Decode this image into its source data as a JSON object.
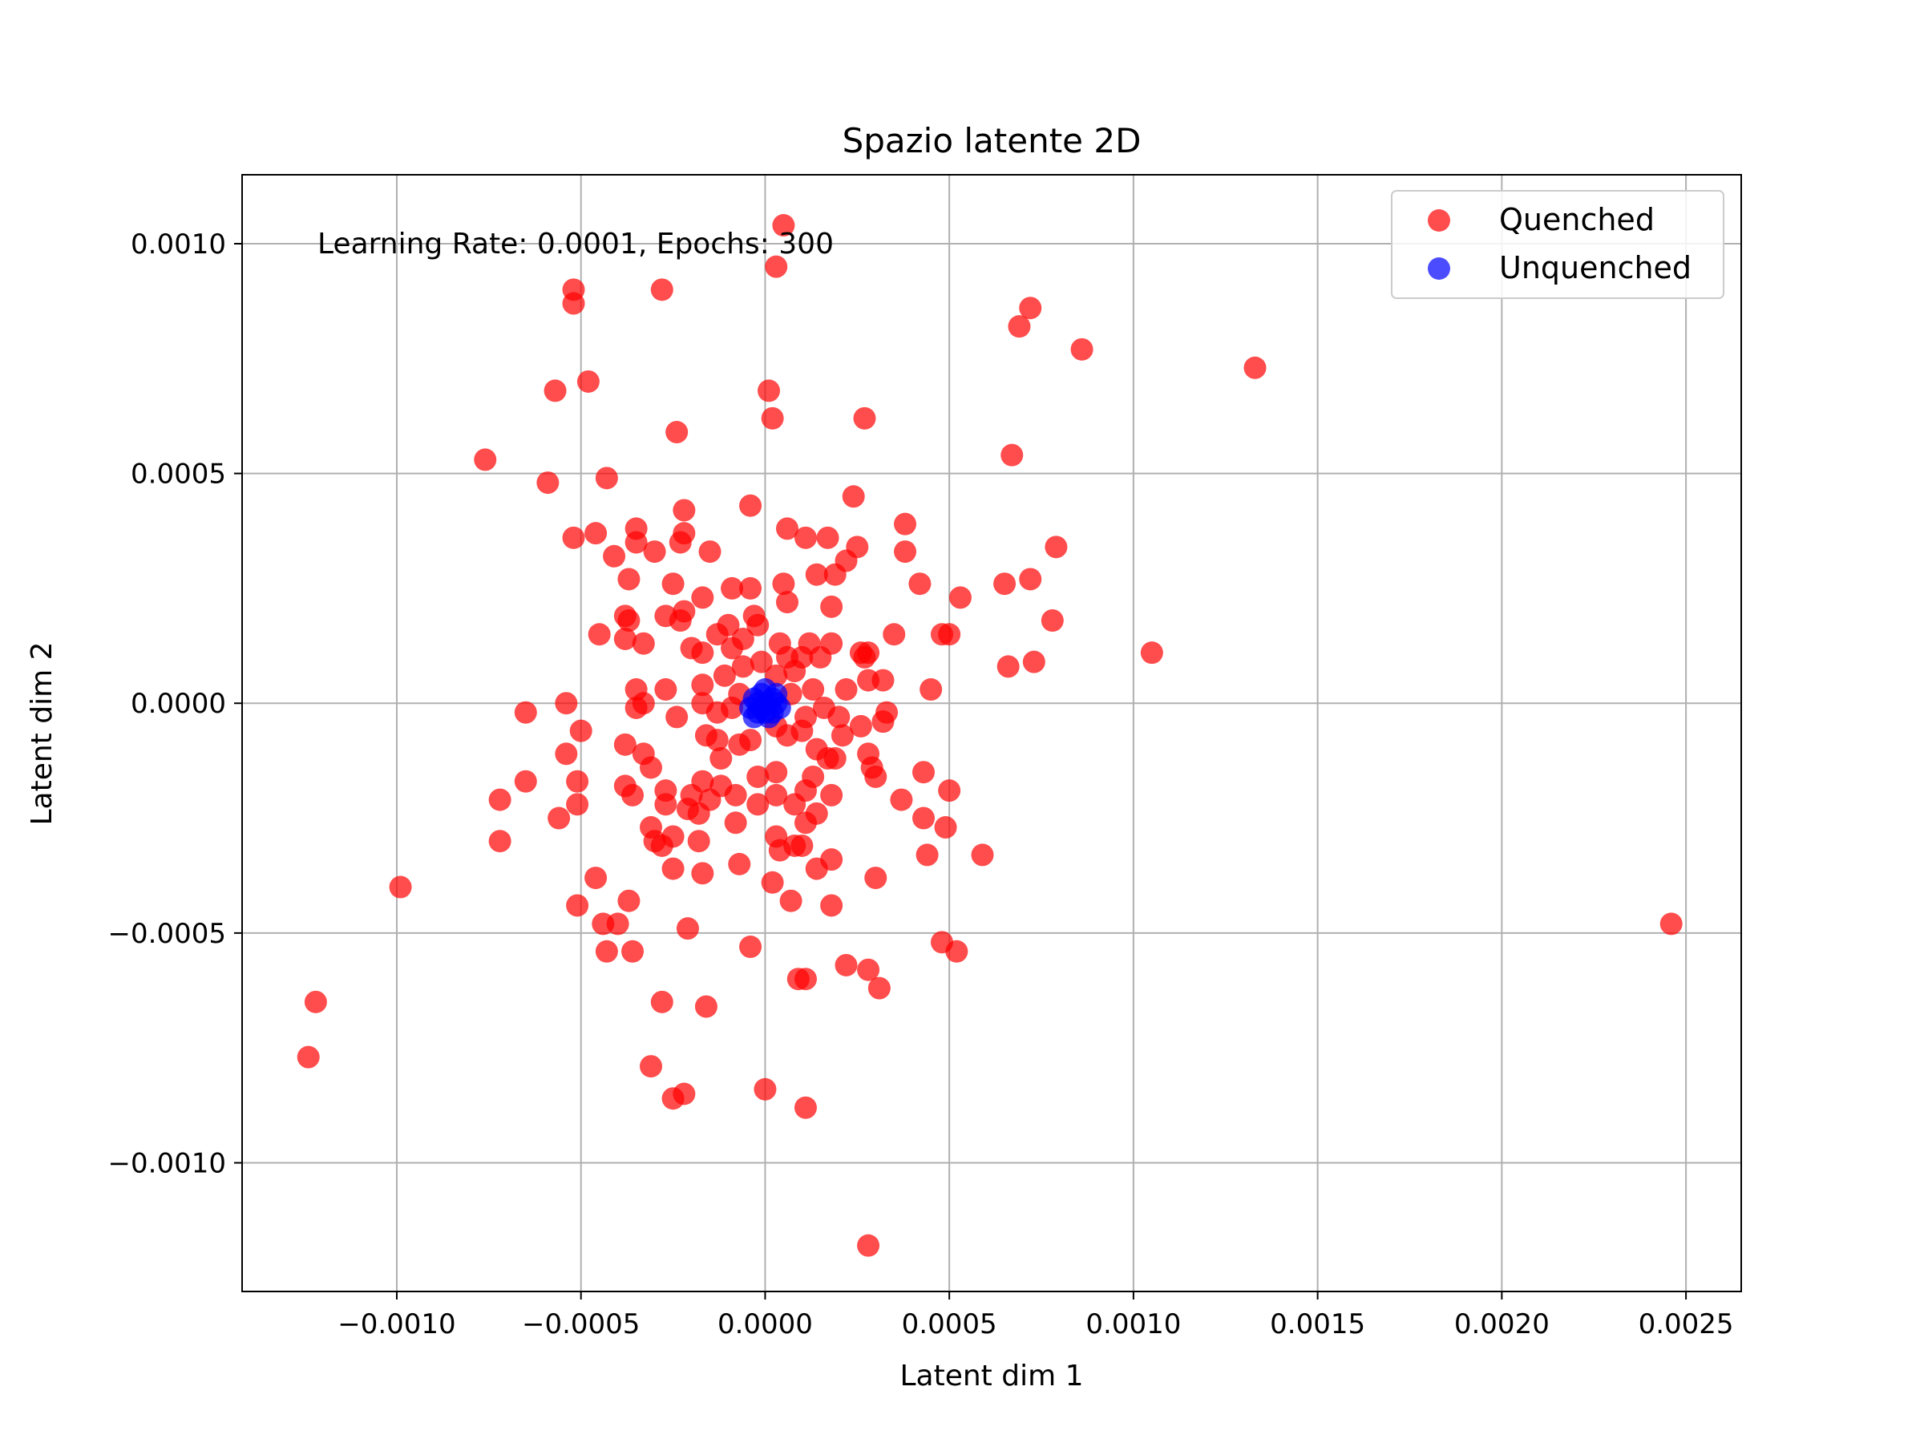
{
  "chart_data": {
    "type": "scatter",
    "title": "Spazio latente 2D",
    "xlabel": "Latent dim 1",
    "ylabel": "Latent dim 2",
    "annotation": "Learning Rate: 0.0001, Epochs: 300",
    "xlim": [
      -0.00142,
      0.00265
    ],
    "ylim": [
      -0.00128,
      0.00115
    ],
    "grid": true,
    "legend_position": "top-right",
    "xticks": [
      -0.001,
      -0.0005,
      0.0,
      0.0005,
      0.001,
      0.0015,
      0.002,
      0.0025
    ],
    "xtick_labels": [
      "−0.0010",
      "−0.0005",
      "0.0000",
      "0.0005",
      "0.0010",
      "0.0015",
      "0.0020",
      "0.0025"
    ],
    "yticks": [
      0.001,
      0.0005,
      0.0,
      -0.0005,
      -0.001
    ],
    "ytick_labels": [
      "0.0010",
      "0.0005",
      "0.0000",
      "−0.0005",
      "−0.0010"
    ],
    "series": [
      {
        "name": "Quenched",
        "color": "#ff0000",
        "alpha": 0.7,
        "points": [
          [
            5e-05,
            0.00104
          ],
          [
            3e-05,
            0.00095
          ],
          [
            -0.00052,
            0.0009
          ],
          [
            -0.00052,
            0.00087
          ],
          [
            -0.00028,
            0.0009
          ],
          [
            0.00072,
            0.00086
          ],
          [
            0.00069,
            0.00082
          ],
          [
            0.00086,
            0.00077
          ],
          [
            0.00133,
            0.00073
          ],
          [
            -0.00057,
            0.00068
          ],
          [
            -0.00048,
            0.0007
          ],
          [
            1e-05,
            0.00068
          ],
          [
            2e-05,
            0.00062
          ],
          [
            0.00027,
            0.00062
          ],
          [
            -0.00024,
            0.00059
          ],
          [
            0.00067,
            0.00054
          ],
          [
            -0.00076,
            0.00053
          ],
          [
            -0.00059,
            0.00048
          ],
          [
            -0.00043,
            0.00049
          ],
          [
            0.00024,
            0.00045
          ],
          [
            -4e-05,
            0.00043
          ],
          [
            -0.00022,
            0.00042
          ],
          [
            0.00038,
            0.00039
          ],
          [
            -0.00035,
            0.00038
          ],
          [
            6e-05,
            0.00038
          ],
          [
            -0.00046,
            0.00037
          ],
          [
            -0.00022,
            0.00037
          ],
          [
            0.00011,
            0.00036
          ],
          [
            0.00017,
            0.00036
          ],
          [
            -0.00052,
            0.00036
          ],
          [
            -0.00035,
            0.00035
          ],
          [
            -0.00023,
            0.00035
          ],
          [
            0.00079,
            0.00034
          ],
          [
            0.00025,
            0.00034
          ],
          [
            -0.00015,
            0.00033
          ],
          [
            0.00038,
            0.00033
          ],
          [
            -0.0003,
            0.00033
          ],
          [
            -0.00041,
            0.00032
          ],
          [
            0.00022,
            0.00031
          ],
          [
            0.00019,
            0.00028
          ],
          [
            0.00014,
            0.00028
          ],
          [
            0.00072,
            0.00027
          ],
          [
            -0.00037,
            0.00027
          ],
          [
            0.00042,
            0.00026
          ],
          [
            0.00065,
            0.00026
          ],
          [
            -0.00025,
            0.00026
          ],
          [
            5e-05,
            0.00026
          ],
          [
            -9e-05,
            0.00025
          ],
          [
            -4e-05,
            0.00025
          ],
          [
            -0.00017,
            0.00023
          ],
          [
            0.00053,
            0.00023
          ],
          [
            6e-05,
            0.00022
          ],
          [
            -0.00022,
            0.0002
          ],
          [
            0.00018,
            0.00021
          ],
          [
            -3e-05,
            0.00019
          ],
          [
            -0.00038,
            0.00019
          ],
          [
            -0.00037,
            0.00018
          ],
          [
            -0.00027,
            0.00019
          ],
          [
            -0.00023,
            0.00018
          ],
          [
            0.00078,
            0.00018
          ],
          [
            -0.0001,
            0.00017
          ],
          [
            -2e-05,
            0.00017
          ],
          [
            -0.00045,
            0.00015
          ],
          [
            0.00035,
            0.00015
          ],
          [
            0.00048,
            0.00015
          ],
          [
            0.0005,
            0.00015
          ],
          [
            -0.00038,
            0.00014
          ],
          [
            -0.00013,
            0.00015
          ],
          [
            -6e-05,
            0.00014
          ],
          [
            4e-05,
            0.00013
          ],
          [
            0.00012,
            0.00013
          ],
          [
            0.00018,
            0.00013
          ],
          [
            -0.00033,
            0.00013
          ],
          [
            -0.0002,
            0.00012
          ],
          [
            -9e-05,
            0.00012
          ],
          [
            0.00026,
            0.00011
          ],
          [
            -0.00017,
            0.00011
          ],
          [
            0.00105,
            0.00011
          ],
          [
            0.00028,
            0.00011
          ],
          [
            0.00015,
            0.0001
          ],
          [
            6e-05,
            0.0001
          ],
          [
            0.0001,
            0.0001
          ],
          [
            -1e-05,
            9e-05
          ],
          [
            0.00027,
            0.0001
          ],
          [
            0.00073,
            9e-05
          ],
          [
            0.00066,
            8e-05
          ],
          [
            -6e-05,
            8e-05
          ],
          [
            8e-05,
            7e-05
          ],
          [
            3e-05,
            6e-05
          ],
          [
            -0.00011,
            6e-05
          ],
          [
            0.00028,
            5e-05
          ],
          [
            0.00032,
            5e-05
          ],
          [
            -0.00017,
            4e-05
          ],
          [
            -0.00035,
            3e-05
          ],
          [
            0.00045,
            3e-05
          ],
          [
            0.00022,
            3e-05
          ],
          [
            -0.00027,
            3e-05
          ],
          [
            0.00013,
            3e-05
          ],
          [
            -7e-05,
            2e-05
          ],
          [
            7e-05,
            2e-05
          ],
          [
            -0.00033,
            0.0
          ],
          [
            -0.00054,
            0.0
          ],
          [
            -0.00017,
            0.0
          ],
          [
            -0.00035,
            -1e-05
          ],
          [
            -0.00065,
            -2e-05
          ],
          [
            -9e-05,
            -1e-05
          ],
          [
            0.00016,
            -1e-05
          ],
          [
            -0.00013,
            -2e-05
          ],
          [
            0.00033,
            -2e-05
          ],
          [
            -0.00024,
            -3e-05
          ],
          [
            0.00011,
            -3e-05
          ],
          [
            0.0002,
            -3e-05
          ],
          [
            0.00032,
            -4e-05
          ],
          [
            -0.0005,
            -6e-05
          ],
          [
            3e-05,
            -5e-05
          ],
          [
            0.00026,
            -5e-05
          ],
          [
            0.0001,
            -6e-05
          ],
          [
            -0.00016,
            -7e-05
          ],
          [
            0.00021,
            -7e-05
          ],
          [
            6e-05,
            -7e-05
          ],
          [
            -0.00013,
            -8e-05
          ],
          [
            -4e-05,
            -8e-05
          ],
          [
            -0.00038,
            -9e-05
          ],
          [
            -7e-05,
            -9e-05
          ],
          [
            0.00014,
            -0.0001
          ],
          [
            0.00028,
            -0.00011
          ],
          [
            -0.00054,
            -0.00011
          ],
          [
            0.00017,
            -0.00012
          ],
          [
            -0.00033,
            -0.00011
          ],
          [
            0.00019,
            -0.00012
          ],
          [
            -0.00012,
            -0.00012
          ],
          [
            0.00029,
            -0.00014
          ],
          [
            -0.00031,
            -0.00014
          ],
          [
            3e-05,
            -0.00015
          ],
          [
            0.00043,
            -0.00015
          ],
          [
            -2e-05,
            -0.00016
          ],
          [
            0.00013,
            -0.00016
          ],
          [
            0.0003,
            -0.00016
          ],
          [
            -0.00017,
            -0.00017
          ],
          [
            -0.00065,
            -0.00017
          ],
          [
            -0.00051,
            -0.00017
          ],
          [
            -0.00038,
            -0.00018
          ],
          [
            -0.00012,
            -0.00018
          ],
          [
            0.0005,
            -0.00019
          ],
          [
            -0.00027,
            -0.00019
          ],
          [
            0.00011,
            -0.00019
          ],
          [
            -8e-05,
            -0.0002
          ],
          [
            -0.00036,
            -0.0002
          ],
          [
            0.00018,
            -0.0002
          ],
          [
            -0.0002,
            -0.0002
          ],
          [
            3e-05,
            -0.0002
          ],
          [
            -0.00015,
            -0.00021
          ],
          [
            -0.00072,
            -0.00021
          ],
          [
            0.00037,
            -0.00021
          ],
          [
            -0.00051,
            -0.00022
          ],
          [
            8e-05,
            -0.00022
          ],
          [
            -0.00027,
            -0.00022
          ],
          [
            -0.00021,
            -0.00023
          ],
          [
            -2e-05,
            -0.00022
          ],
          [
            0.00014,
            -0.00024
          ],
          [
            -0.00018,
            -0.00024
          ],
          [
            -0.00056,
            -0.00025
          ],
          [
            0.00043,
            -0.00025
          ],
          [
            0.00011,
            -0.00026
          ],
          [
            -8e-05,
            -0.00026
          ],
          [
            0.00049,
            -0.00027
          ],
          [
            -0.00031,
            -0.00027
          ],
          [
            -0.00025,
            -0.00029
          ],
          [
            3e-05,
            -0.00029
          ],
          [
            -0.0003,
            -0.0003
          ],
          [
            -0.00072,
            -0.0003
          ],
          [
            -0.00018,
            -0.0003
          ],
          [
            -0.00028,
            -0.00031
          ],
          [
            8e-05,
            -0.00031
          ],
          [
            0.0001,
            -0.00031
          ],
          [
            4e-05,
            -0.00032
          ],
          [
            0.00059,
            -0.00033
          ],
          [
            0.00044,
            -0.00033
          ],
          [
            0.00018,
            -0.00034
          ],
          [
            -7e-05,
            -0.00035
          ],
          [
            0.00014,
            -0.00036
          ],
          [
            -0.00025,
            -0.00036
          ],
          [
            -0.00017,
            -0.00037
          ],
          [
            -0.00046,
            -0.00038
          ],
          [
            0.0003,
            -0.00038
          ],
          [
            2e-05,
            -0.00039
          ],
          [
            -0.00099,
            -0.0004
          ],
          [
            -0.00037,
            -0.00043
          ],
          [
            7e-05,
            -0.00043
          ],
          [
            -0.00051,
            -0.00044
          ],
          [
            0.00018,
            -0.00044
          ],
          [
            -0.00044,
            -0.00048
          ],
          [
            -0.0004,
            -0.00048
          ],
          [
            -0.00021,
            -0.00049
          ],
          [
            0.00246,
            -0.00048
          ],
          [
            0.00048,
            -0.00052
          ],
          [
            -4e-05,
            -0.00053
          ],
          [
            0.00052,
            -0.00054
          ],
          [
            -0.00043,
            -0.00054
          ],
          [
            -0.00036,
            -0.00054
          ],
          [
            0.00022,
            -0.00057
          ],
          [
            0.00028,
            -0.00058
          ],
          [
            0.00011,
            -0.0006
          ],
          [
            9e-05,
            -0.0006
          ],
          [
            0.00031,
            -0.00062
          ],
          [
            -0.00122,
            -0.00065
          ],
          [
            -0.00028,
            -0.00065
          ],
          [
            -0.00016,
            -0.00066
          ],
          [
            -0.00031,
            -0.00079
          ],
          [
            -0.00124,
            -0.00077
          ],
          [
            0.0,
            -0.00084
          ],
          [
            -0.00022,
            -0.00085
          ],
          [
            -0.00025,
            -0.00086
          ],
          [
            0.00011,
            -0.00088
          ],
          [
            0.00028,
            -0.00118
          ]
        ]
      },
      {
        "name": "Unquenched",
        "color": "#0000ff",
        "alpha": 0.7,
        "points": [
          [
            0.0,
            0.0
          ],
          [
            -3e-05,
            1e-05
          ],
          [
            3e-05,
            2e-05
          ],
          [
            -2e-05,
            -2e-05
          ],
          [
            2e-05,
            -2e-05
          ],
          [
            0.0,
            3e-05
          ],
          [
            -4e-05,
            -1e-05
          ],
          [
            4e-05,
            -1e-05
          ],
          [
            1e-05,
            -3e-05
          ],
          [
            -1e-05,
            2e-05
          ],
          [
            3e-05,
            0.0
          ],
          [
            -3e-05,
            -3e-05
          ],
          [
            2e-05,
            1e-05
          ],
          [
            -1e-05,
            -1e-05
          ],
          [
            0.0,
            -2e-05
          ],
          [
            -2e-05,
            0.0
          ]
        ]
      }
    ]
  }
}
